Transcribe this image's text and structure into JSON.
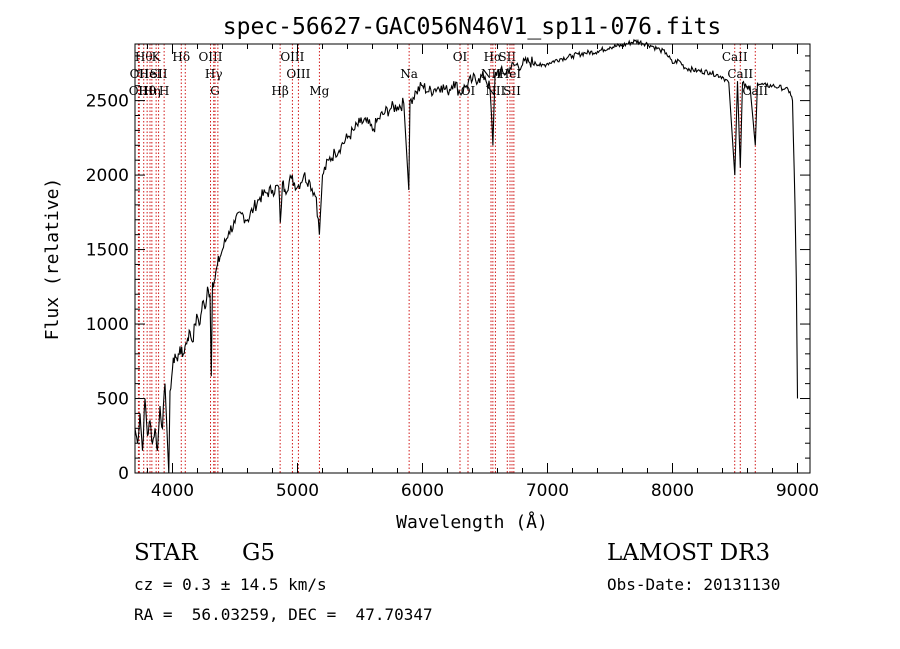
{
  "chart_data": {
    "type": "line",
    "title": "spec-56627-GAC056N46V1_sp11-076.fits",
    "xlabel": "Wavelength (Å)",
    "ylabel": "Flux (relative)",
    "xlim": [
      3700,
      9100
    ],
    "ylim": [
      0,
      2880
    ],
    "x_ticks": [
      4000,
      5000,
      6000,
      7000,
      8000,
      9000
    ],
    "y_ticks": [
      0,
      500,
      1000,
      1500,
      2000,
      2500
    ],
    "x_tick_labels": [
      "4000",
      "5000",
      "6000",
      "7000",
      "8000",
      "9000"
    ],
    "y_tick_labels": [
      "0",
      "500",
      "1000",
      "1500",
      "2000",
      "2500"
    ],
    "grid": false,
    "line_color": "#000000",
    "marker_color": "#cc0000",
    "series": [
      {
        "name": "flux",
        "x": [
          3700,
          3720,
          3740,
          3760,
          3780,
          3800,
          3820,
          3840,
          3860,
          3880,
          3900,
          3920,
          3940,
          3960,
          3970,
          3980,
          4000,
          4020,
          4040,
          4060,
          4080,
          4100,
          4120,
          4140,
          4160,
          4180,
          4200,
          4220,
          4240,
          4260,
          4280,
          4300,
          4310,
          4320,
          4340,
          4360,
          4380,
          4400,
          4450,
          4500,
          4550,
          4600,
          4650,
          4700,
          4750,
          4800,
          4850,
          4862,
          4880,
          4900,
          4950,
          5000,
          5050,
          5100,
          5150,
          5175,
          5200,
          5250,
          5300,
          5350,
          5400,
          5450,
          5500,
          5550,
          5600,
          5650,
          5700,
          5750,
          5800,
          5850,
          5890,
          5900,
          5950,
          6000,
          6050,
          6100,
          6150,
          6200,
          6250,
          6300,
          6350,
          6400,
          6450,
          6500,
          6540,
          6563,
          6580,
          6600,
          6650,
          6700,
          6750,
          6800,
          6850,
          6900,
          6950,
          7000,
          7100,
          7200,
          7300,
          7400,
          7500,
          7600,
          7700,
          7800,
          7850,
          7900,
          7950,
          8000,
          8050,
          8100,
          8200,
          8300,
          8400,
          8450,
          8498,
          8520,
          8542,
          8560,
          8600,
          8620,
          8662,
          8680,
          8700,
          8750,
          8800,
          8850,
          8900,
          8940,
          8960,
          8980,
          8990,
          9000
        ],
        "y": [
          300,
          200,
          400,
          150,
          500,
          250,
          350,
          200,
          300,
          150,
          450,
          300,
          600,
          200,
          0,
          550,
          700,
          800,
          750,
          850,
          780,
          850,
          900,
          950,
          880,
          1000,
          1050,
          1000,
          1150,
          1100,
          1250,
          1200,
          650,
          1280,
          1300,
          1400,
          1450,
          1500,
          1620,
          1680,
          1740,
          1700,
          1780,
          1850,
          1880,
          1900,
          1920,
          1680,
          1950,
          1900,
          1980,
          1920,
          2000,
          1950,
          1850,
          1600,
          2000,
          2100,
          2150,
          2200,
          2250,
          2300,
          2350,
          2360,
          2300,
          2380,
          2420,
          2450,
          2460,
          2480,
          1900,
          2500,
          2560,
          2600,
          2560,
          2580,
          2600,
          2560,
          2630,
          2550,
          2600,
          2640,
          2650,
          2660,
          2580,
          2200,
          2660,
          2700,
          2680,
          2720,
          2740,
          2740,
          2760,
          2760,
          2730,
          2750,
          2780,
          2800,
          2820,
          2830,
          2860,
          2870,
          2900,
          2880,
          2860,
          2840,
          2820,
          2750,
          2770,
          2720,
          2700,
          2690,
          2660,
          2620,
          2000,
          2630,
          2050,
          2620,
          2580,
          2600,
          2200,
          2620,
          2610,
          2600,
          2600,
          2590,
          2580,
          2560,
          2500,
          1800,
          1300,
          500
        ]
      }
    ],
    "line_markers": [
      {
        "wavelength": 3727,
        "label": "OII",
        "row": 3
      },
      {
        "wavelength": 3734,
        "label": "OII",
        "row": 2
      },
      {
        "wavelength": 3770,
        "label": "Hθ",
        "row": 1
      },
      {
        "wavelength": 3797,
        "label": "Hθ",
        "row": 3
      },
      {
        "wavelength": 3820,
        "label": "HeI",
        "row": 2
      },
      {
        "wavelength": 3835,
        "label": "Hη",
        "row": 3
      },
      {
        "wavelength": 3869,
        "label": "K",
        "row": 1
      },
      {
        "wavelength": 3889,
        "label": "SII",
        "row": 2
      },
      {
        "wavelength": 3933,
        "label": "H",
        "row": 3
      },
      {
        "wavelength": 4070,
        "label": "Hδ",
        "row": 1
      },
      {
        "wavelength": 4102,
        "label": "",
        "row": 0
      },
      {
        "wavelength": 4304,
        "label": "OIII",
        "row": 1
      },
      {
        "wavelength": 4330,
        "label": "Hγ",
        "row": 2
      },
      {
        "wavelength": 4340,
        "label": "G",
        "row": 3
      },
      {
        "wavelength": 4363,
        "label": "",
        "row": 0
      },
      {
        "wavelength": 4861,
        "label": "Hβ",
        "row": 3
      },
      {
        "wavelength": 4959,
        "label": "OIII",
        "row": 1
      },
      {
        "wavelength": 5007,
        "label": "OIII",
        "row": 2
      },
      {
        "wavelength": 5175,
        "label": "Mg",
        "row": 3
      },
      {
        "wavelength": 5893,
        "label": "Na",
        "row": 2
      },
      {
        "wavelength": 6300,
        "label": "OI",
        "row": 1
      },
      {
        "wavelength": 6364,
        "label": "OI",
        "row": 3
      },
      {
        "wavelength": 6548,
        "label": "NII",
        "row": 2
      },
      {
        "wavelength": 6563,
        "label": "Hα",
        "row": 1
      },
      {
        "wavelength": 6583,
        "label": "NII",
        "row": 3
      },
      {
        "wavelength": 6678,
        "label": "SII",
        "row": 1
      },
      {
        "wavelength": 6700,
        "label": "HeI",
        "row": 2
      },
      {
        "wavelength": 6716,
        "label": "SII",
        "row": 3
      },
      {
        "wavelength": 6731,
        "label": "",
        "row": 0
      },
      {
        "wavelength": 8498,
        "label": "CaII",
        "row": 1
      },
      {
        "wavelength": 8542,
        "label": "CaII",
        "row": 2
      },
      {
        "wavelength": 8662,
        "label": "CaII",
        "row": 3
      }
    ]
  },
  "info": {
    "object_type": "STAR",
    "subclass": "G5",
    "survey": "LAMOST DR3",
    "cz": "cz = 0.3 ± 14.5 km/s",
    "obs_date": "Obs-Date: 20131130",
    "coords": "RA =  56.03259, DEC =  47.70347"
  }
}
